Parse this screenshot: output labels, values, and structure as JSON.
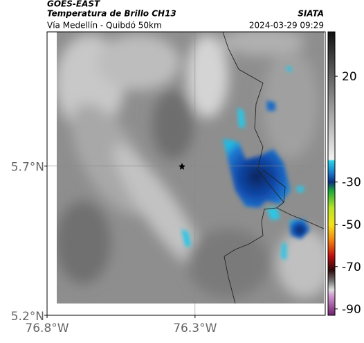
{
  "chart_data": {
    "type": "image",
    "title": "GOES-EAST",
    "subtitle": "Temperatura de Brillo CH13",
    "credit": "SIATA",
    "location": "Vía Medellín - Quibdó 50km",
    "timestamp": "2024-03-29 09:29",
    "xlim": [
      -76.8,
      -75.86
    ],
    "ylim": [
      5.2,
      6.15
    ],
    "xticks": [
      {
        "value": -76.8,
        "label": "76.8°W"
      },
      {
        "value": -76.3,
        "label": "76.3°W"
      }
    ],
    "yticks": [
      {
        "value": 5.2,
        "label": "5.2°N"
      },
      {
        "value": 5.7,
        "label": "5.7°N"
      }
    ],
    "grid": true,
    "colorbar": {
      "lim": [
        -93,
        41
      ],
      "ticks": [
        20,
        -30,
        -50,
        -70,
        -90
      ]
    }
  }
}
